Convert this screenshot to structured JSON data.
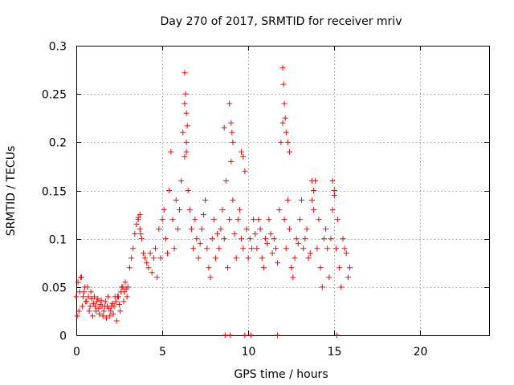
{
  "chart_data": {
    "type": "scatter",
    "title": "Day 270 of 2017, SRMTID for receiver mriv",
    "xlabel": "GPS time / hours",
    "ylabel": "SRMTID / TECUs",
    "xlim": [
      0,
      24
    ],
    "ylim": [
      0,
      0.3
    ],
    "xticks": [
      0,
      5,
      10,
      15,
      20
    ],
    "xtick_labels": [
      "0",
      "5",
      "10",
      "15",
      "20"
    ],
    "yticks": [
      0,
      0.05,
      0.1,
      0.15,
      0.2,
      0.25,
      0.3
    ],
    "ytick_labels": [
      "0",
      "0.05",
      "0.1",
      "0.15",
      "0.2",
      "0.25",
      "0.3"
    ],
    "grid": true,
    "marker": "+",
    "color": "#ff0000",
    "series": [
      {
        "name": "SRMTID",
        "x": [
          0.0,
          0.1,
          0.2,
          0.3,
          0.4,
          0.5,
          0.6,
          0.7,
          0.8,
          0.9,
          1.0,
          1.1,
          1.2,
          1.3,
          1.4,
          1.5,
          1.6,
          1.7,
          1.8,
          1.9,
          2.0,
          2.1,
          2.2,
          2.3,
          2.4,
          2.5,
          2.6,
          2.7,
          2.8,
          2.9,
          3.0,
          3.1,
          3.2,
          3.3,
          3.4,
          3.5,
          3.6,
          3.7,
          3.8,
          3.9,
          4.0,
          4.1,
          4.2,
          4.3,
          4.4,
          4.5,
          4.6,
          4.7,
          4.8,
          4.9,
          5.0,
          5.1,
          5.2,
          5.3,
          5.4,
          5.5,
          5.6,
          5.7,
          5.8,
          5.9,
          6.0,
          6.1,
          6.2,
          6.3,
          6.4,
          6.5,
          6.6,
          6.7,
          6.8,
          6.9,
          7.0,
          7.1,
          7.2,
          7.3,
          7.4,
          7.5,
          7.6,
          7.7,
          7.8,
          7.9,
          8.0,
          8.1,
          8.2,
          8.3,
          8.4,
          8.5,
          8.6,
          8.7,
          8.8,
          8.9,
          9.0,
          9.1,
          9.2,
          9.3,
          9.4,
          9.5,
          9.6,
          9.7,
          9.8,
          9.9,
          10.0,
          10.1,
          10.2,
          10.3,
          10.4,
          10.5,
          10.6,
          10.7,
          10.8,
          10.9,
          11.0,
          11.1,
          11.2,
          11.3,
          11.4,
          11.5,
          11.6,
          11.7,
          11.8,
          11.9,
          12.0,
          12.1,
          12.2,
          12.3,
          12.4,
          12.5,
          12.6,
          12.7,
          12.8,
          12.9,
          13.0,
          13.1,
          13.2,
          13.3,
          13.4,
          13.5,
          13.6,
          13.7,
          13.8,
          13.9,
          14.0,
          14.1,
          14.2,
          14.3,
          14.4,
          14.5,
          14.6,
          14.7,
          14.8,
          14.9,
          15.0,
          15.1,
          15.2,
          15.3,
          15.4,
          15.5,
          15.6,
          15.7,
          15.8,
          15.9,
          0.05,
          0.15,
          0.25,
          0.35,
          0.45,
          0.55,
          0.65,
          0.75,
          0.85,
          0.95,
          1.05,
          1.15,
          1.25,
          1.35,
          1.45,
          1.55,
          1.65,
          1.75,
          1.85,
          1.95,
          2.05,
          2.15,
          2.25,
          2.35,
          2.45,
          2.55,
          2.65,
          2.75,
          2.85,
          2.95,
          3.6,
          3.7,
          3.75,
          6.3,
          6.35,
          6.4,
          6.45,
          6.4,
          6.3,
          8.6,
          8.9,
          9.0,
          9.05,
          9.1,
          9.6,
          9.7,
          12.0,
          12.05,
          12.1,
          12.15,
          12.2,
          12.3,
          12.4,
          13.7,
          13.8,
          14.9,
          15.0,
          8.65,
          8.95,
          9.8,
          10.15,
          11.7,
          15.15
        ],
        "y": [
          0.04,
          0.055,
          0.045,
          0.06,
          0.04,
          0.05,
          0.035,
          0.04,
          0.03,
          0.038,
          0.033,
          0.03,
          0.035,
          0.028,
          0.032,
          0.03,
          0.025,
          0.035,
          0.03,
          0.028,
          0.025,
          0.033,
          0.03,
          0.035,
          0.04,
          0.032,
          0.045,
          0.05,
          0.045,
          0.048,
          0.05,
          0.07,
          0.08,
          0.09,
          0.105,
          0.115,
          0.12,
          0.11,
          0.1,
          0.085,
          0.08,
          0.075,
          0.07,
          0.085,
          0.065,
          0.08,
          0.09,
          0.06,
          0.11,
          0.08,
          0.12,
          0.13,
          0.1,
          0.085,
          0.15,
          0.19,
          0.12,
          0.09,
          0.14,
          0.11,
          0.13,
          0.16,
          0.21,
          0.24,
          0.19,
          0.15,
          0.13,
          0.11,
          0.09,
          0.12,
          0.1,
          0.08,
          0.095,
          0.11,
          0.125,
          0.14,
          0.09,
          0.07,
          0.06,
          0.1,
          0.12,
          0.08,
          0.105,
          0.09,
          0.11,
          0.13,
          0.1,
          0.16,
          0.07,
          0.12,
          0.18,
          0.14,
          0.105,
          0.08,
          0.12,
          0.13,
          0.1,
          0.09,
          0.17,
          0.11,
          0.08,
          0.1,
          0.09,
          0.12,
          0.105,
          0.09,
          0.12,
          0.11,
          0.08,
          0.07,
          0.1,
          0.095,
          0.12,
          0.105,
          0.085,
          0.1,
          0.09,
          0.075,
          0.13,
          0.2,
          0.22,
          0.12,
          0.09,
          0.14,
          0.11,
          0.07,
          0.06,
          0.08,
          0.1,
          0.095,
          0.12,
          0.14,
          0.09,
          0.1,
          0.11,
          0.08,
          0.085,
          0.14,
          0.13,
          0.16,
          0.09,
          0.12,
          0.07,
          0.05,
          0.1,
          0.11,
          0.09,
          0.06,
          0.1,
          0.13,
          0.15,
          0.09,
          0.12,
          0.07,
          0.05,
          0.1,
          0.09,
          0.085,
          0.06,
          0.07,
          0.02,
          0.025,
          0.06,
          0.03,
          0.045,
          0.035,
          0.05,
          0.025,
          0.045,
          0.02,
          0.04,
          0.025,
          0.038,
          0.022,
          0.036,
          0.02,
          0.03,
          0.018,
          0.04,
          0.02,
          0.03,
          0.022,
          0.04,
          0.015,
          0.04,
          0.025,
          0.05,
          0.035,
          0.055,
          0.04,
          0.122,
          0.125,
          0.105,
          0.272,
          0.25,
          0.23,
          0.217,
          0.2,
          0.185,
          0.215,
          0.24,
          0.22,
          0.21,
          0.2,
          0.19,
          0.185,
          0.277,
          0.26,
          0.24,
          0.225,
          0.21,
          0.2,
          0.19,
          0.16,
          0.15,
          0.16,
          0.145,
          0.0,
          0.0,
          0.0,
          0.0,
          0.0,
          0.0
        ]
      }
    ]
  }
}
